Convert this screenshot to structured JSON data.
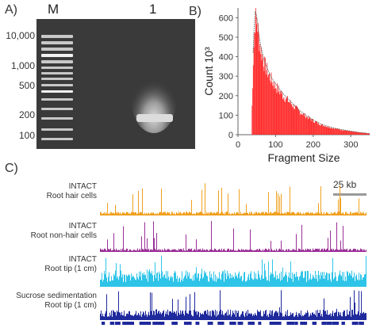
{
  "panels": {
    "a": {
      "letter": "A)",
      "marker_lane_label": "M",
      "sample_lane_label": "1",
      "ladder_labels": [
        "10,000",
        "1,000",
        "500",
        "200",
        "100"
      ]
    },
    "b": {
      "letter": "B)"
    },
    "c": {
      "letter": "C)",
      "scale_bar_label": "25 kb",
      "tracks": [
        {
          "line1": "INTACT",
          "line2": "Root hair cells",
          "color": "#f0a020"
        },
        {
          "line1": "INTACT",
          "line2": "Root non-hair cells",
          "color": "#9b2f98"
        },
        {
          "line1": "INTACT",
          "line2": "Root tip (1 cm)",
          "color": "#2ec4e8"
        },
        {
          "line1": "Sucrose sedimentation",
          "line2": "Root tip (1 cm)",
          "color": "#1f2a9c"
        }
      ],
      "gene_track_color": "#1f2a9c"
    }
  },
  "chart_data": {
    "type": "bar",
    "title": "",
    "xlabel": "Fragment Size",
    "ylabel": "Count 10³",
    "xlim": [
      0,
      350
    ],
    "ylim": [
      0,
      650
    ],
    "xticks": [
      0,
      100,
      200,
      300
    ],
    "yticks": [
      0,
      100,
      200,
      300,
      400,
      500,
      600
    ],
    "grid": false,
    "bar_color": "#ff2a2a",
    "fit_line_color": "#555555",
    "x": [
      35,
      40,
      45,
      50,
      55,
      60,
      65,
      70,
      80,
      90,
      100,
      110,
      120,
      130,
      140,
      150,
      160,
      170,
      180,
      190,
      200,
      210,
      220,
      240,
      260,
      280,
      300,
      320,
      340,
      350
    ],
    "values": [
      30,
      420,
      640,
      610,
      520,
      460,
      420,
      380,
      330,
      290,
      260,
      235,
      210,
      190,
      170,
      150,
      130,
      115,
      100,
      88,
      75,
      65,
      55,
      42,
      32,
      25,
      18,
      12,
      8,
      6
    ]
  }
}
